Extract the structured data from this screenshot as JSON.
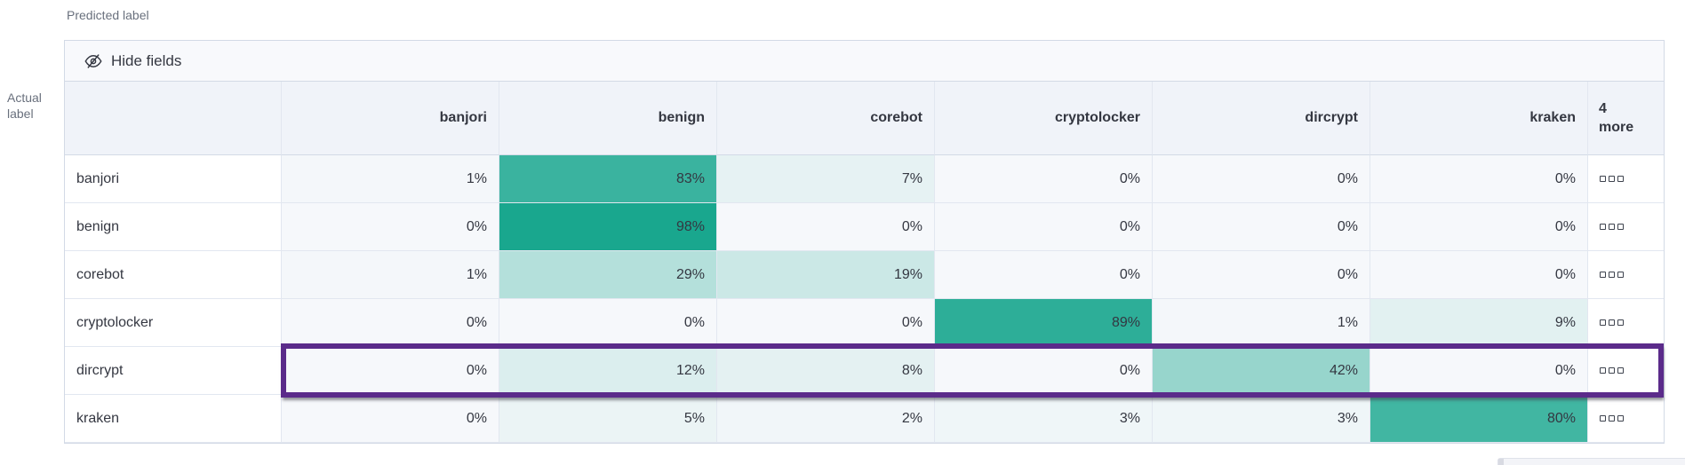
{
  "page": {
    "predicted_label": "Predicted label",
    "actual_label_line1": "Actual",
    "actual_label_line2": "label"
  },
  "toolbar": {
    "hide_fields_label": "Hide fields"
  },
  "chart_data": {
    "type": "heatmap",
    "xlabel": "Predicted label",
    "ylabel": "Actual label",
    "columns": [
      "banjori",
      "benign",
      "corebot",
      "cryptolocker",
      "dircrypt",
      "kraken"
    ],
    "extra_columns_label": "4 more",
    "rows": [
      "banjori",
      "benign",
      "corebot",
      "cryptolocker",
      "dircrypt",
      "kraken"
    ],
    "value_unit": "percent",
    "value_suffix": "%",
    "values": [
      [
        1,
        83,
        7,
        0,
        0,
        0
      ],
      [
        0,
        98,
        0,
        0,
        0,
        0
      ],
      [
        1,
        29,
        19,
        0,
        0,
        0
      ],
      [
        0,
        0,
        0,
        89,
        1,
        9
      ],
      [
        0,
        12,
        8,
        0,
        42,
        0
      ],
      [
        0,
        5,
        2,
        3,
        3,
        80
      ]
    ],
    "highlighted_row": "dircrypt",
    "colors": {
      "heat_base": "#14A58C",
      "heat_zero_bg": "#F6F8FB",
      "highlight_outline": "#5B2B8A",
      "header_bg": "#F0F3F9",
      "text": "#343741",
      "axis_text": "#69707D"
    }
  }
}
